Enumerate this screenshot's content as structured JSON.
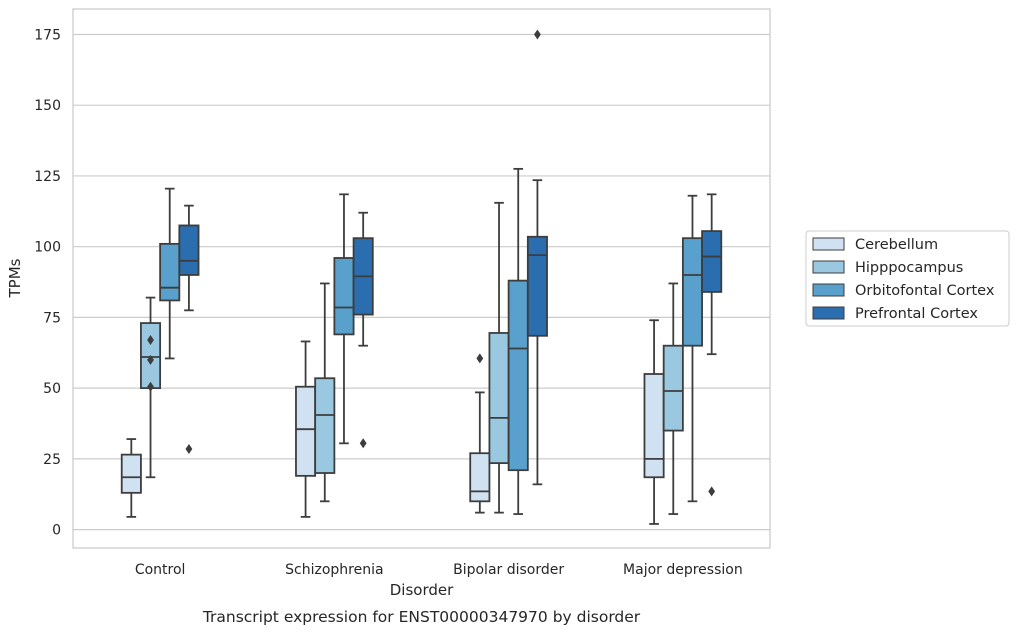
{
  "chart_data": {
    "type": "boxplot",
    "title": "",
    "caption": "Transcript expression for ENST00000347970 by disorder",
    "xlabel": "Disorder",
    "ylabel": "TPMs",
    "ylim": [
      -6.5,
      184
    ],
    "yticks": [
      0,
      25,
      50,
      75,
      100,
      125,
      150,
      175
    ],
    "grid": "horizontal",
    "legend_position": "right",
    "categories": [
      "Control",
      "Schizophrenia",
      "Bipolar disorder",
      "Major depression"
    ],
    "series": [
      {
        "name": "Cerebellum",
        "color": "#d0e1f2",
        "boxes": [
          {
            "whisker_low": 4.5,
            "q1": 13,
            "median": 18.5,
            "q3": 26.5,
            "whisker_high": 32,
            "outliers": []
          },
          {
            "whisker_low": 4.5,
            "q1": 19,
            "median": 35.5,
            "q3": 50.5,
            "whisker_high": 66.5,
            "outliers": []
          },
          {
            "whisker_low": 6,
            "q1": 10,
            "median": 13.5,
            "q3": 27,
            "whisker_high": 48.5,
            "outliers": [
              60.5
            ]
          },
          {
            "whisker_low": 2,
            "q1": 18.5,
            "median": 25,
            "q3": 55,
            "whisker_high": 74,
            "outliers": []
          }
        ]
      },
      {
        "name": "Hipppocampus",
        "color": "#9ac8e0",
        "boxes": [
          {
            "whisker_low": 18.5,
            "q1": 50,
            "median": 61,
            "q3": 73,
            "whisker_high": 82,
            "outliers": [
              50.5,
              60,
              67
            ]
          },
          {
            "whisker_low": 10,
            "q1": 20,
            "median": 40.5,
            "q3": 53.5,
            "whisker_high": 87,
            "outliers": []
          },
          {
            "whisker_low": 6,
            "q1": 23.5,
            "median": 39.5,
            "q3": 69.5,
            "whisker_high": 115.5,
            "outliers": []
          },
          {
            "whisker_low": 5.5,
            "q1": 35,
            "median": 49,
            "q3": 65,
            "whisker_high": 87,
            "outliers": []
          }
        ]
      },
      {
        "name": "Orbitofontal Cortex",
        "color": "#5aa0cd",
        "boxes": [
          {
            "whisker_low": 60.5,
            "q1": 81,
            "median": 85.5,
            "q3": 101,
            "whisker_high": 120.5,
            "outliers": []
          },
          {
            "whisker_low": 30.5,
            "q1": 69,
            "median": 78.5,
            "q3": 96,
            "whisker_high": 118.5,
            "outliers": []
          },
          {
            "whisker_low": 5.5,
            "q1": 21,
            "median": 64,
            "q3": 88,
            "whisker_high": 127.5,
            "outliers": []
          },
          {
            "whisker_low": 10,
            "q1": 65,
            "median": 90,
            "q3": 103,
            "whisker_high": 118,
            "outliers": []
          }
        ]
      },
      {
        "name": "Prefrontal Cortex",
        "color": "#2a6eb0",
        "boxes": [
          {
            "whisker_low": 77.5,
            "q1": 90,
            "median": 95,
            "q3": 107.5,
            "whisker_high": 114.5,
            "outliers": [
              28.5
            ]
          },
          {
            "whisker_low": 65,
            "q1": 76,
            "median": 89.5,
            "q3": 103,
            "whisker_high": 112,
            "outliers": [
              30.5
            ]
          },
          {
            "whisker_low": 16,
            "q1": 68.5,
            "median": 97,
            "q3": 103.5,
            "whisker_high": 123.5,
            "outliers": [
              175
            ]
          },
          {
            "whisker_low": 62,
            "q1": 84,
            "median": 96.5,
            "q3": 105.5,
            "whisker_high": 118.5,
            "outliers": [
              13.5
            ]
          }
        ]
      }
    ]
  }
}
